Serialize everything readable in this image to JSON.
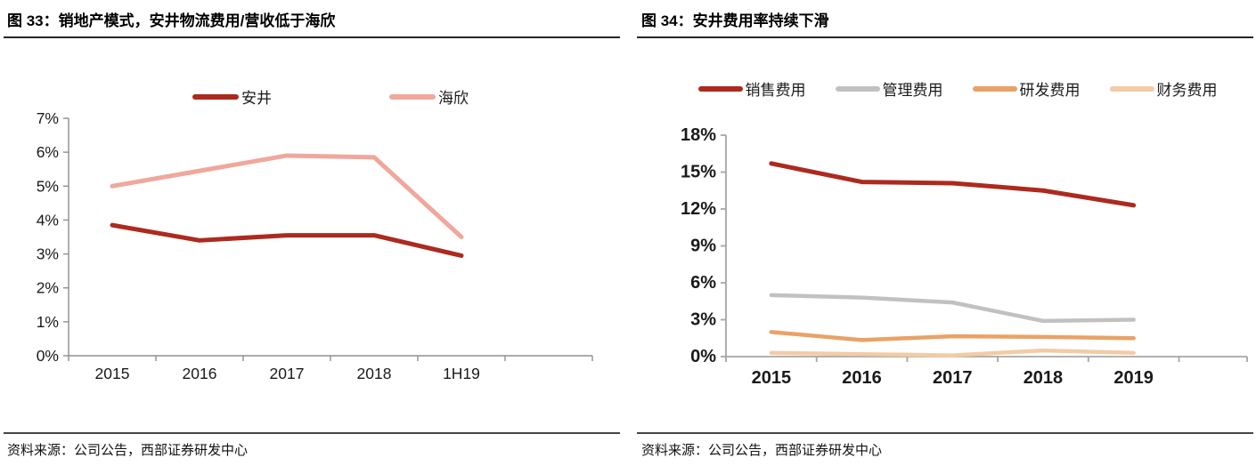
{
  "figures": [
    {
      "title": "图 33：销地产模式，安井物流费用/营收低于海欣",
      "source": "资料来源：公司公告，西部证券研发中心"
    },
    {
      "title": "图 34：安井费用率持续下滑",
      "source": "资料来源：公司公告，西部证券研发中心"
    }
  ],
  "chart_data": [
    {
      "type": "line",
      "title": "图 33：销地产模式，安井物流费用/营收低于海欣",
      "categories": [
        "2015",
        "2016",
        "2017",
        "2018",
        "1H19"
      ],
      "series": [
        {
          "name": "安井",
          "color": "#AC2A1E",
          "values": [
            3.85,
            3.4,
            3.55,
            3.55,
            2.95
          ]
        },
        {
          "name": "海欣",
          "color": "#F0A79C",
          "values": [
            5.0,
            5.45,
            5.9,
            5.85,
            3.5
          ]
        }
      ],
      "ylabel": "",
      "xlabel": "",
      "ylim": [
        0,
        7
      ],
      "ytick_step": 1,
      "ytick_labels": [
        "0%",
        "1%",
        "2%",
        "3%",
        "4%",
        "5%",
        "6%",
        "7%"
      ],
      "grid": false,
      "legend_position": "top"
    },
    {
      "type": "line",
      "title": "图 34：安井费用率持续下滑",
      "categories": [
        "2015",
        "2016",
        "2017",
        "2018",
        "2019"
      ],
      "series": [
        {
          "name": "销售费用",
          "color": "#AC2A1E",
          "values": [
            15.7,
            14.2,
            14.1,
            13.5,
            12.3
          ]
        },
        {
          "name": "管理费用",
          "color": "#C1C1C1",
          "values": [
            5.0,
            4.8,
            4.4,
            2.9,
            3.0
          ]
        },
        {
          "name": "研发费用",
          "color": "#E9A266",
          "values": [
            2.0,
            1.35,
            1.65,
            1.6,
            1.5
          ]
        },
        {
          "name": "财务费用",
          "color": "#F3CBA5",
          "values": [
            0.3,
            0.2,
            0.1,
            0.5,
            0.3
          ]
        }
      ],
      "ylabel": "",
      "xlabel": "",
      "ylim": [
        0,
        18
      ],
      "ytick_step": 3,
      "ytick_labels": [
        "0%",
        "3%",
        "6%",
        "9%",
        "12%",
        "15%",
        "18%"
      ],
      "grid": false,
      "legend_position": "top"
    }
  ]
}
